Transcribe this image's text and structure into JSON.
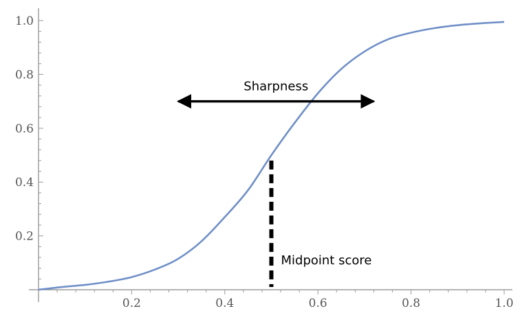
{
  "chart_data": {
    "type": "line",
    "title": "",
    "xlabel": "",
    "ylabel": "",
    "xlim": [
      0,
      1
    ],
    "ylim": [
      0,
      1
    ],
    "x_ticks": [
      0.2,
      0.4,
      0.6,
      0.8,
      1.0
    ],
    "x_tick_labels": [
      "0.2",
      "0.4",
      "0.6",
      "0.8",
      "1.0"
    ],
    "y_ticks": [
      0.2,
      0.4,
      0.6,
      0.8,
      1.0
    ],
    "y_tick_labels": [
      "0.2",
      "0.4",
      "0.6",
      "0.8",
      "1.0"
    ],
    "grid": false,
    "series": [
      {
        "color": "#6f8fc7",
        "x": [
          0,
          0.05,
          0.1,
          0.15,
          0.2,
          0.25,
          0.3,
          0.35,
          0.4,
          0.45,
          0.5,
          0.55,
          0.6,
          0.65,
          0.7,
          0.75,
          0.8,
          0.85,
          0.9,
          0.95,
          1.0
        ],
        "y": [
          0.0,
          0.01,
          0.018,
          0.03,
          0.047,
          0.075,
          0.115,
          0.18,
          0.27,
          0.37,
          0.5,
          0.62,
          0.73,
          0.82,
          0.885,
          0.93,
          0.955,
          0.972,
          0.983,
          0.99,
          0.995
        ]
      }
    ],
    "annotations": {
      "sharpness": {
        "label": "Sharpness",
        "x_from": 0.3,
        "x_to": 0.72,
        "y": 0.7
      },
      "midpoint": {
        "label": "Midpoint score",
        "x": 0.5,
        "y_from": 0.0,
        "y_to": 0.48
      }
    }
  }
}
